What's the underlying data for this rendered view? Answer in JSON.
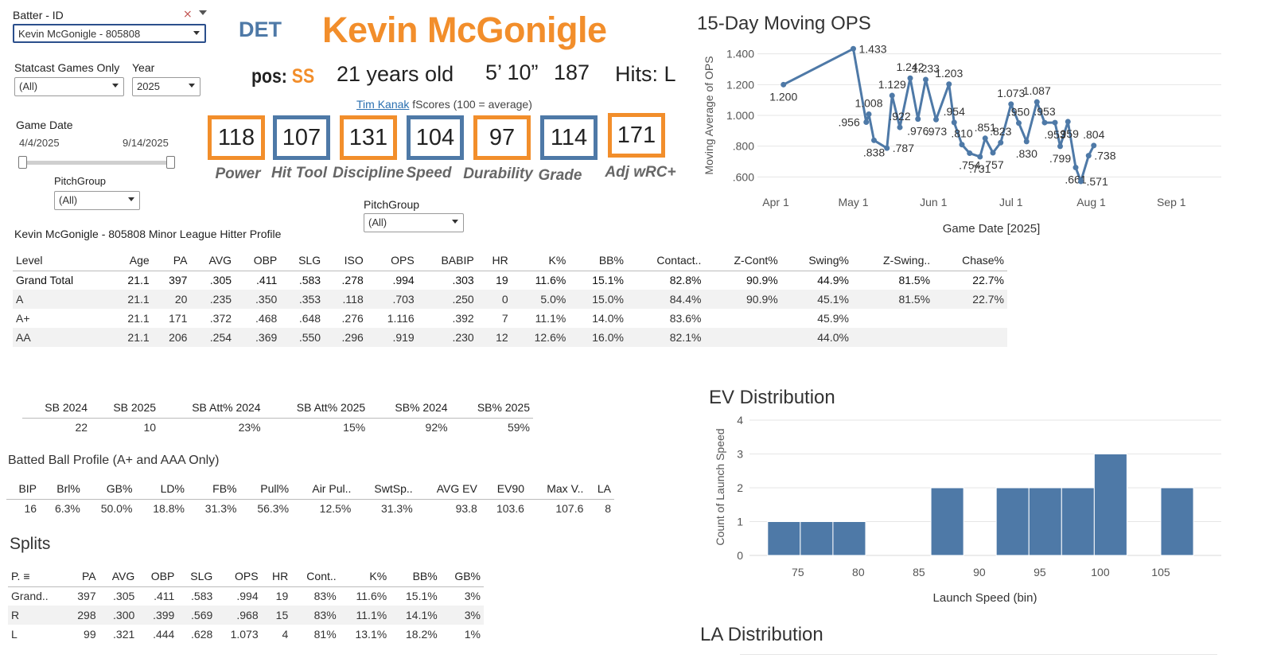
{
  "filters": {
    "batter_label": "Batter - ID",
    "batter_value": "Kevin McGonigle - 805808",
    "statcast_label": "Statcast Games Only",
    "statcast_value": "(All)",
    "year_label": "Year",
    "year_value": "2025",
    "game_date_label": "Game Date",
    "date_start": "4/4/2025",
    "date_end": "9/14/2025",
    "pitchgroup_label": "PitchGroup",
    "pitchgroup_value": "(All)",
    "pitchgroup2_label": "PitchGroup",
    "pitchgroup2_value": "(All)"
  },
  "player": {
    "team": "DET",
    "name": "Kevin McGonigle",
    "pos_prefix": "pos:",
    "pos": "SS",
    "age": "21 years old",
    "height": "5’ 10”",
    "weight": "187",
    "hits": "Hits:  L"
  },
  "fscores": {
    "author": "Tim Kanak",
    "caption": " fScores (100 = average)",
    "items": [
      {
        "value": "118",
        "label": "Power"
      },
      {
        "value": "107",
        "label": "Hit Tool"
      },
      {
        "value": "131",
        "label": "Discipline"
      },
      {
        "value": "104",
        "label": "Speed"
      },
      {
        "value": "97",
        "label": "Durability"
      },
      {
        "value": "114",
        "label": "Grade"
      },
      {
        "value": "171",
        "label": "Adj wRC+"
      }
    ]
  },
  "profile": {
    "title": "Kevin McGonigle - 805808 Minor League Hitter Profile",
    "headers": [
      "Level",
      "Age",
      "PA",
      "AVG",
      "OBP",
      "SLG",
      "ISO",
      "OPS",
      "BABIP",
      "HR",
      "K%",
      "BB%",
      "Contact..",
      "Z-Cont%",
      "Swing%",
      "Z-Swing..",
      "Chase%"
    ],
    "rows": [
      [
        "Grand Total",
        "21.1",
        "397",
        ".305",
        ".411",
        ".583",
        ".278",
        ".994",
        ".303",
        "19",
        "11.6%",
        "15.1%",
        "82.8%",
        "90.9%",
        "44.9%",
        "81.5%",
        "22.7%"
      ],
      [
        "A",
        "21.1",
        "20",
        ".235",
        ".350",
        ".353",
        ".118",
        ".703",
        ".250",
        "0",
        "5.0%",
        "15.0%",
        "84.4%",
        "90.9%",
        "45.1%",
        "81.5%",
        "22.7%"
      ],
      [
        "A+",
        "21.1",
        "171",
        ".372",
        ".468",
        ".648",
        ".276",
        "1.116",
        ".392",
        "7",
        "11.1%",
        "14.0%",
        "83.6%",
        "",
        "45.9%",
        "",
        ""
      ],
      [
        "AA",
        "21.1",
        "206",
        ".254",
        ".369",
        ".550",
        ".296",
        ".919",
        ".230",
        "12",
        "12.6%",
        "16.0%",
        "82.1%",
        "",
        "44.0%",
        "",
        ""
      ]
    ]
  },
  "sb": {
    "headers": [
      "SB 2024",
      "SB 2025",
      "SB Att% 2024",
      "SB Att% 2025",
      "SB% 2024",
      "SB% 2025"
    ],
    "values": [
      "22",
      "10",
      "23%",
      "15%",
      "92%",
      "59%"
    ]
  },
  "batted": {
    "title": "Batted Ball Profile (A+ and AAA Only)",
    "headers": [
      "BIP",
      "Brl%",
      "GB%",
      "LD%",
      "FB%",
      "Pull%",
      "Air Pul..",
      "SwtSp..",
      "AVG EV",
      "EV90",
      "Max V..",
      "LA"
    ],
    "values": [
      "16",
      "6.3%",
      "50.0%",
      "18.8%",
      "31.3%",
      "56.3%",
      "12.5%",
      "31.3%",
      "93.8",
      "103.6",
      "107.6",
      "8"
    ]
  },
  "splits": {
    "title": "Splits",
    "headers": [
      "P.",
      "PA",
      "AVG",
      "OBP",
      "SLG",
      "OPS",
      "HR",
      "Cont..",
      "K%",
      "BB%",
      "GB%"
    ],
    "rows": [
      [
        "Grand..",
        "397",
        ".305",
        ".411",
        ".583",
        ".994",
        "19",
        "83%",
        "11.6%",
        "15.1%",
        "3%"
      ],
      [
        "R",
        "298",
        ".300",
        ".399",
        ".569",
        ".968",
        "15",
        "83%",
        "11.1%",
        "14.1%",
        "3%"
      ],
      [
        "L",
        "99",
        ".321",
        ".444",
        ".628",
        "1.073",
        "4",
        "81%",
        "13.1%",
        "18.2%",
        "1%"
      ]
    ]
  },
  "la_title": "LA Distribution",
  "colors": {
    "orange": "#f28e2b",
    "blue": "#4e79a7"
  },
  "chart_data": [
    {
      "type": "line",
      "title": "15-Day Moving OPS",
      "xlabel": "Game Date [2025]",
      "ylabel": "Moving Average of OPS",
      "ylim": [
        0.55,
        1.45
      ],
      "yticks": [
        ".600",
        ".800",
        "1.000",
        "1.200",
        "1.400"
      ],
      "ytick_values": [
        0.6,
        0.8,
        1.0,
        1.2,
        1.4
      ],
      "xticks": [
        "Apr 1",
        "May 1",
        "Jun 1",
        "Jul 1",
        "Aug 1",
        "Sep 1"
      ],
      "xtick_days": [
        0,
        30,
        61,
        91,
        122,
        153
      ],
      "points": [
        [
          3,
          1.2
        ],
        [
          30,
          1.433
        ],
        [
          35,
          0.956
        ],
        [
          36,
          1.008
        ],
        [
          38,
          0.838
        ],
        [
          43,
          0.787
        ],
        [
          45,
          1.129
        ],
        [
          48,
          0.922
        ],
        [
          52,
          1.242
        ],
        [
          55,
          0.976
        ],
        [
          58,
          1.233
        ],
        [
          62,
          0.973
        ],
        [
          67,
          1.203
        ],
        [
          69,
          0.954
        ],
        [
          72,
          0.81
        ],
        [
          75,
          0.754
        ],
        [
          79,
          0.731
        ],
        [
          81,
          0.851
        ],
        [
          84,
          0.757
        ],
        [
          87,
          0.823
        ],
        [
          91,
          1.073
        ],
        [
          94,
          0.95
        ],
        [
          97,
          0.83
        ],
        [
          101,
          1.087
        ],
        [
          104,
          0.953
        ],
        [
          108,
          0.953
        ],
        [
          110,
          0.799
        ],
        [
          113,
          0.959
        ],
        [
          116,
          0.661
        ],
        [
          118,
          0.571
        ],
        [
          121,
          0.738
        ],
        [
          123,
          0.804
        ]
      ],
      "labeled": [
        {
          "day": 3,
          "v": 1.2,
          "text": "1.200",
          "pos": "below"
        },
        {
          "day": 30,
          "v": 1.433,
          "text": "1.433",
          "pos": "right"
        },
        {
          "day": 35,
          "v": 0.956,
          "text": ".956",
          "pos": "left"
        },
        {
          "day": 36,
          "v": 1.008,
          "text": "1.008",
          "pos": "above"
        },
        {
          "day": 38,
          "v": 0.838,
          "text": ".838",
          "pos": "below"
        },
        {
          "day": 43,
          "v": 0.787,
          "text": ".787",
          "pos": "right"
        },
        {
          "day": 45,
          "v": 1.129,
          "text": "1.129",
          "pos": "above"
        },
        {
          "day": 48,
          "v": 0.922,
          "text": ".922",
          "pos": "above"
        },
        {
          "day": 52,
          "v": 1.242,
          "text": "1.242",
          "pos": "above"
        },
        {
          "day": 55,
          "v": 0.976,
          "text": ".976",
          "pos": "below"
        },
        {
          "day": 58,
          "v": 1.233,
          "text": "1.233",
          "pos": "above"
        },
        {
          "day": 62,
          "v": 0.973,
          "text": ".973",
          "pos": "below"
        },
        {
          "day": 67,
          "v": 1.203,
          "text": "1.203",
          "pos": "above"
        },
        {
          "day": 69,
          "v": 0.954,
          "text": ".954",
          "pos": "above"
        },
        {
          "day": 72,
          "v": 0.81,
          "text": ".810",
          "pos": "above"
        },
        {
          "day": 75,
          "v": 0.754,
          "text": ".754",
          "pos": "below"
        },
        {
          "day": 79,
          "v": 0.731,
          "text": ".731",
          "pos": "below"
        },
        {
          "day": 81,
          "v": 0.851,
          "text": ".851",
          "pos": "above"
        },
        {
          "day": 84,
          "v": 0.757,
          "text": ".757",
          "pos": "below"
        },
        {
          "day": 87,
          "v": 0.823,
          "text": ".823",
          "pos": "above"
        },
        {
          "day": 91,
          "v": 1.073,
          "text": "1.073",
          "pos": "above"
        },
        {
          "day": 94,
          "v": 0.95,
          "text": ".950",
          "pos": "above"
        },
        {
          "day": 97,
          "v": 0.83,
          "text": ".830",
          "pos": "below"
        },
        {
          "day": 101,
          "v": 1.087,
          "text": "1.087",
          "pos": "above"
        },
        {
          "day": 104,
          "v": 0.953,
          "text": ".953",
          "pos": "above"
        },
        {
          "day": 108,
          "v": 0.953,
          "text": ".953",
          "pos": "below"
        },
        {
          "day": 110,
          "v": 0.799,
          "text": ".799",
          "pos": "below"
        },
        {
          "day": 113,
          "v": 0.959,
          "text": ".959",
          "pos": "below"
        },
        {
          "day": 116,
          "v": 0.661,
          "text": ".661",
          "pos": "below"
        },
        {
          "day": 118,
          "v": 0.571,
          "text": ".571",
          "pos": "right"
        },
        {
          "day": 121,
          "v": 0.738,
          "text": ".738",
          "pos": "right"
        },
        {
          "day": 123,
          "v": 0.804,
          "text": ".804",
          "pos": "above"
        }
      ]
    },
    {
      "type": "bar",
      "title": "EV Distribution",
      "xlabel": "Launch Speed (bin)",
      "ylabel": "Count of Launch Speed",
      "ylim": [
        0,
        4
      ],
      "yticks": [
        "0",
        "1",
        "2",
        "3",
        "4"
      ],
      "xticks": [
        "75",
        "80",
        "85",
        "90",
        "95",
        "100",
        "105"
      ],
      "xtick_values": [
        75,
        80,
        85,
        90,
        95,
        100,
        105
      ],
      "xlim": [
        71,
        110
      ],
      "bins": [
        {
          "start": 72.5,
          "count": 1
        },
        {
          "start": 75.2,
          "count": 1
        },
        {
          "start": 77.9,
          "count": 1
        },
        {
          "start": 86.0,
          "count": 2
        },
        {
          "start": 91.4,
          "count": 2
        },
        {
          "start": 94.1,
          "count": 2
        },
        {
          "start": 96.8,
          "count": 2
        },
        {
          "start": 99.5,
          "count": 3
        },
        {
          "start": 105.0,
          "count": 2
        }
      ],
      "bin_width": 2.7
    }
  ]
}
